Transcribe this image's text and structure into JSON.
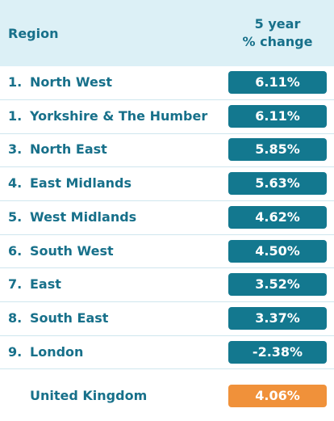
{
  "table": {
    "header": {
      "region": "Region",
      "change": [
        "5 year",
        "% change"
      ]
    },
    "rows": [
      [
        "1.",
        "North West",
        "6.11%"
      ],
      [
        "1.",
        "Yorkshire & The Humber",
        "6.11%"
      ],
      [
        "3.",
        "North East",
        "5.85%"
      ],
      [
        "4.",
        "East Midlands",
        "5.63%"
      ],
      [
        "5.",
        "West Midlands",
        "4.62%"
      ],
      [
        "6.",
        "South West",
        "4.50%"
      ],
      [
        "7.",
        "East",
        "3.52%"
      ],
      [
        "8.",
        "South East",
        "3.37%"
      ],
      [
        "9.",
        "London",
        "-2.38%"
      ]
    ],
    "total": [
      "United Kingdom",
      "4.06%"
    ]
  }
}
